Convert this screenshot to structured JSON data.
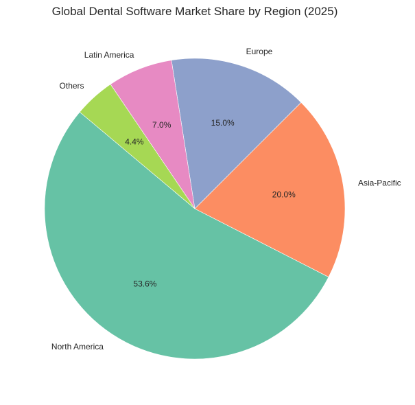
{
  "chart_data": {
    "type": "pie",
    "title": "Global Dental Software Market Share by Region (2025)",
    "categories": [
      "North America",
      "Asia-Pacific",
      "Europe",
      "Latin America",
      "Others"
    ],
    "values": [
      53.6,
      20.0,
      15.0,
      7.0,
      4.4
    ],
    "value_labels": [
      "53.6%",
      "20.0%",
      "15.0%",
      "7.0%",
      "4.4%"
    ],
    "colors": [
      "#66c2a5",
      "#fc8d62",
      "#8da0cb",
      "#e78ac3",
      "#a6d854"
    ],
    "start_angle": 140,
    "counterclock": true,
    "legend": "none"
  }
}
